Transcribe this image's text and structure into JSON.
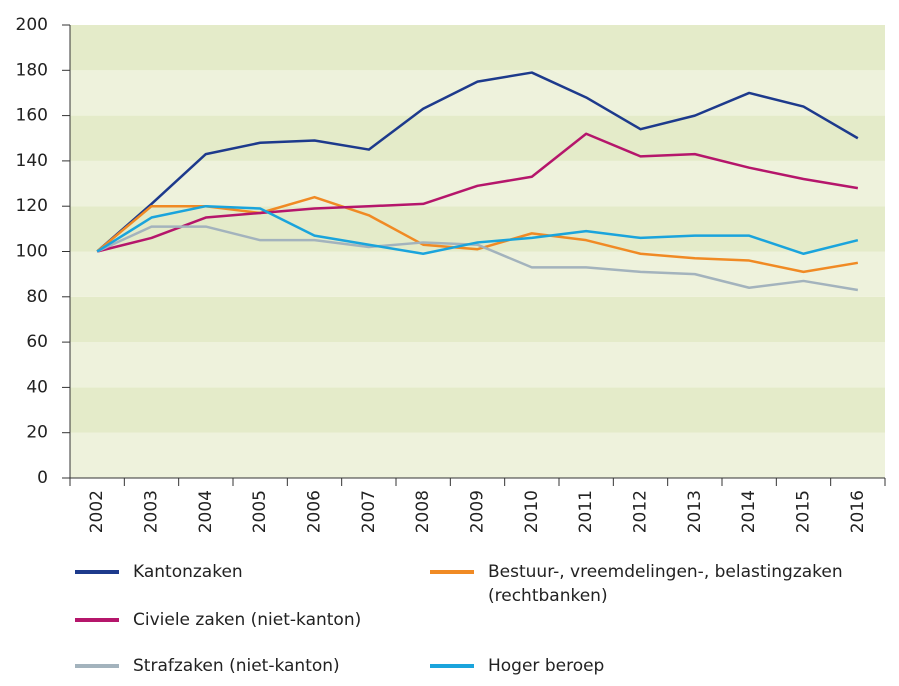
{
  "chart_data": {
    "type": "line",
    "categories": [
      "2002",
      "2003",
      "2004",
      "2005",
      "2006",
      "2007",
      "2008",
      "2009",
      "2010",
      "2011",
      "2012",
      "2013",
      "2014",
      "2015",
      "2016"
    ],
    "series": [
      {
        "name": "Kantonzaken",
        "color": "#1d3a8c",
        "values": [
          100,
          121,
          143,
          148,
          149,
          145,
          163,
          175,
          179,
          168,
          154,
          160,
          170,
          164,
          150
        ]
      },
      {
        "name": "Bestuur-, vreemdelingen-, belastingzaken (rechtbanken)",
        "color": "#f08a24",
        "values": [
          100,
          120,
          120,
          117,
          124,
          116,
          103,
          101,
          108,
          105,
          99,
          97,
          96,
          91,
          95
        ]
      },
      {
        "name": "Civiele zaken (niet-kanton)",
        "color": "#b5166b",
        "values": [
          100,
          106,
          115,
          117,
          119,
          120,
          121,
          129,
          133,
          152,
          142,
          143,
          137,
          132,
          128
        ]
      },
      {
        "name": "Strafzaken (niet-kanton)",
        "color": "#a3b3bd",
        "values": [
          100,
          111,
          111,
          105,
          105,
          102,
          104,
          103,
          93,
          93,
          91,
          90,
          84,
          87,
          83
        ]
      },
      {
        "name": "Hoger beroep",
        "color": "#1aa4dc",
        "values": [
          100,
          115,
          120,
          119,
          107,
          103,
          99,
          104,
          106,
          109,
          106,
          107,
          107,
          99,
          105
        ]
      }
    ],
    "ylim": [
      0,
      200
    ],
    "yticks": [
      0,
      20,
      40,
      60,
      80,
      100,
      120,
      140,
      160,
      180,
      200
    ],
    "grid": true
  }
}
